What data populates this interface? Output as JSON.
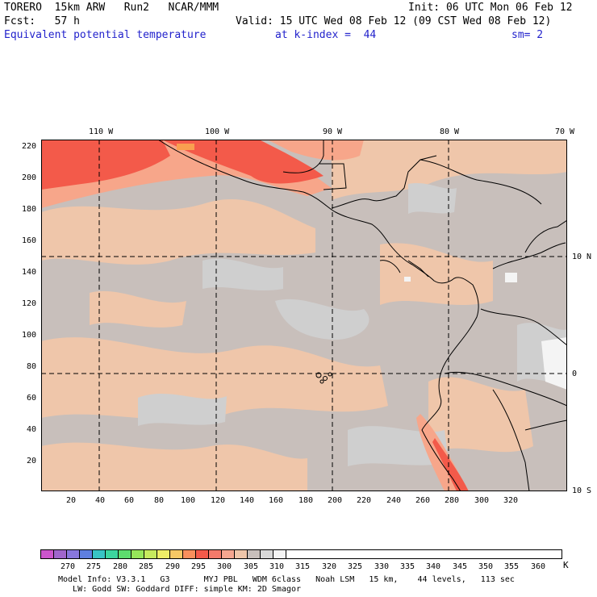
{
  "header": {
    "model": "TORERO  15km ARW   Run2   NCAR/MMM",
    "init": "Init: 06 UTC Mon 06 Feb 12",
    "fcst": "Fcst:   57 h",
    "valid": "Valid: 15 UTC Wed 08 Feb 12 (09 CST Wed 08 Feb 12)",
    "field": "Equivalent potential temperature",
    "level": "at k-index =  44",
    "smooth": "sm= 2"
  },
  "map": {
    "lon_labels": [
      "110 W",
      "100 W",
      "90 W",
      "80 W",
      "70 W"
    ],
    "lat_labels": [
      "10 N",
      "0",
      "10 S"
    ],
    "y_ticks": [
      "220",
      "200",
      "180",
      "160",
      "140",
      "120",
      "100",
      "80",
      "60",
      "40",
      "20"
    ],
    "x_ticks": [
      "20",
      "40",
      "60",
      "80",
      "100",
      "120",
      "140",
      "160",
      "180",
      "200",
      "220",
      "240",
      "260",
      "280",
      "300",
      "320"
    ],
    "colors": {
      "base": "#c8bfbb",
      "gray": "#cfcfcf",
      "tan": "#efc6aa",
      "salmon": "#f7a68a",
      "red": "#f35a4a",
      "orange": "#f9a050",
      "white": "#f4f4f4"
    }
  },
  "colorbar": {
    "labels": [
      "270",
      "275",
      "280",
      "285",
      "290",
      "295",
      "300",
      "305",
      "310",
      "315",
      "320",
      "325",
      "330",
      "335",
      "340",
      "345",
      "350",
      "355",
      "360"
    ],
    "unit": "K",
    "colors": [
      "#cc55cc",
      "#a066cc",
      "#8877dd",
      "#5f7fe0",
      "#38c4c4",
      "#3cd69e",
      "#5ddc6e",
      "#96e65a",
      "#c6ea5e",
      "#eeee66",
      "#f7c865",
      "#f98f5c",
      "#f35a4a",
      "#f47a6a",
      "#f5a690",
      "#efc6aa",
      "#c8bfbb",
      "#d8d8d8",
      "#f4f4f4",
      "#ffffff"
    ]
  },
  "footer": {
    "line1": "Model Info: V3.3.1   G3       MYJ PBL   WDM 6class   Noah LSM   15 km,    44 levels,   113 sec",
    "line2": "   LW: Godd SW: Goddard DIFF: simple KM: 2D Smagor"
  }
}
